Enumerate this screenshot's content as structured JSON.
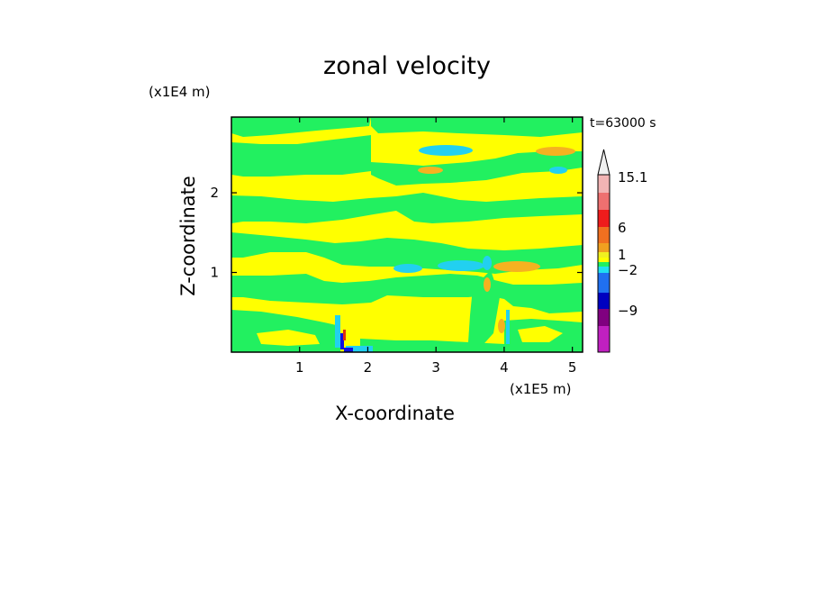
{
  "chart_data": {
    "type": "heatmap",
    "title": "zonal velocity",
    "xlabel": "X-coordinate",
    "ylabel": "Z-coordinate",
    "x_unit": "(x1E5 m)",
    "z_unit": "(x1E4 m)",
    "time_label": "t=63000 s",
    "xlim": [
      0,
      5.15
    ],
    "ylim": [
      0,
      2.95
    ],
    "xticks": [
      1,
      2,
      3,
      4,
      5
    ],
    "yticks": [
      1,
      2
    ],
    "colorbar": {
      "labels": [
        "15.1",
        "6",
        "1",
        "−2",
        "−9"
      ],
      "level_colors": [
        "#f0f0f0",
        "#f2b4b4",
        "#ee7070",
        "#ee1c1c",
        "#f07020",
        "#f0a020",
        "#f0f020",
        "#ffff00",
        "#20f060",
        "#20e0f0",
        "#2070f0",
        "#0000c0",
        "#800080",
        "#c020c0",
        "#f020c0"
      ]
    },
    "field_colors": {
      "background": "#ffff00",
      "band": "#22f060",
      "negative": "#22d0f0",
      "positive": "#f5b220",
      "strong_negative": "#1010e0",
      "strong_positive": "#e03010"
    }
  }
}
